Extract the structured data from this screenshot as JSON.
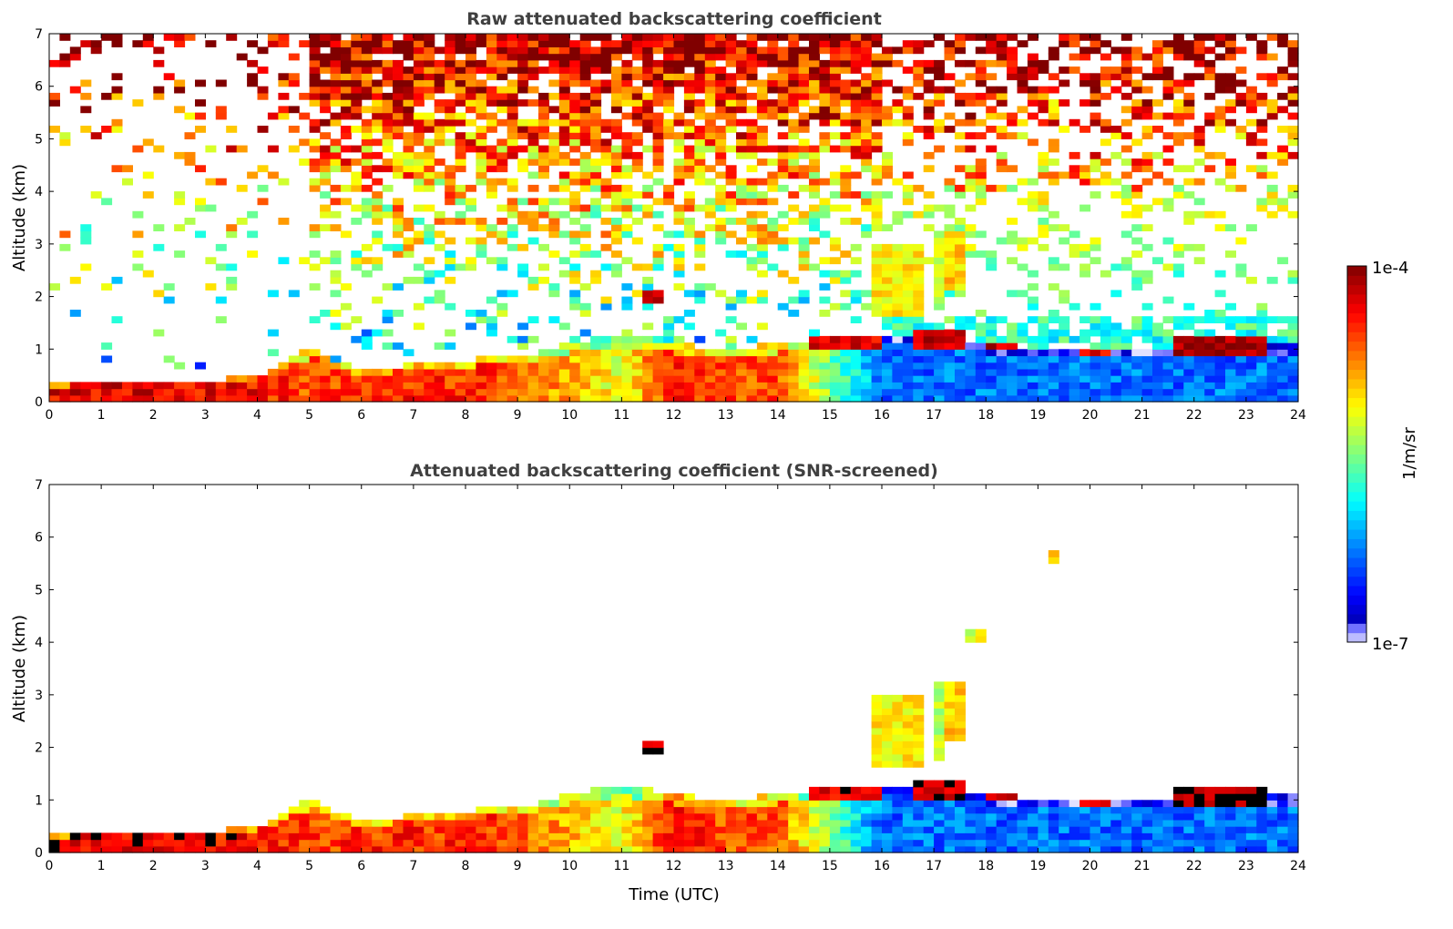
{
  "chart_data": [
    {
      "type": "heatmap",
      "title": "Raw attenuated backscattering coefficient",
      "xlabel": "",
      "ylabel": "Altitude (km)",
      "xlim": [
        0,
        24
      ],
      "ylim": [
        0,
        7
      ],
      "xticks": [
        "0",
        "1",
        "2",
        "3",
        "4",
        "5",
        "6",
        "7",
        "8",
        "9",
        "10",
        "11",
        "12",
        "13",
        "14",
        "15",
        "16",
        "17",
        "18",
        "19",
        "20",
        "21",
        "22",
        "23",
        "24"
      ],
      "yticks": [
        "0",
        "1",
        "2",
        "3",
        "4",
        "5",
        "6",
        "7"
      ],
      "screened": false
    },
    {
      "type": "heatmap",
      "title": "Attenuated backscattering coefficient (SNR-screened)",
      "xlabel": "Time (UTC)",
      "ylabel": "Altitude (km)",
      "xlim": [
        0,
        24
      ],
      "ylim": [
        0,
        7
      ],
      "xticks": [
        "0",
        "1",
        "2",
        "3",
        "4",
        "5",
        "6",
        "7",
        "8",
        "9",
        "10",
        "11",
        "12",
        "13",
        "14",
        "15",
        "16",
        "17",
        "18",
        "19",
        "20",
        "21",
        "22",
        "23",
        "24"
      ],
      "yticks": [
        "0",
        "1",
        "2",
        "3",
        "4",
        "5",
        "6",
        "7"
      ],
      "screened": true
    }
  ],
  "colorbar": {
    "label": "1/m/sr",
    "max_label": "1e-4",
    "min_label": "1e-7",
    "log10_range": [
      -7,
      -4
    ]
  },
  "model": {
    "boundary_layer_top_km_hourly": [
      0.35,
      0.4,
      0.42,
      0.4,
      0.5,
      1.0,
      0.6,
      0.7,
      0.8,
      0.85,
      1.1,
      1.3,
      1.1,
      1.0,
      1.1,
      1.2,
      1.3,
      1.2,
      1.1,
      1.0,
      1.0,
      1.0,
      1.1,
      1.1,
      1.1
    ],
    "boundary_layer_log10_hourly": [
      -4.3,
      -4.3,
      -4.3,
      -4.35,
      -4.4,
      -4.6,
      -4.5,
      -4.5,
      -4.5,
      -4.6,
      -4.9,
      -5.2,
      -4.4,
      -4.6,
      -4.6,
      -5.5,
      -6.3,
      -6.3,
      -6.3,
      -6.3,
      -6.3,
      -6.3,
      -6.3,
      -6.3,
      -6.3
    ],
    "layers": [
      {
        "t": [
          11.45,
          11.7
        ],
        "z": [
          1.9,
          2.1
        ],
        "log10": -4.2
      },
      {
        "t": [
          15.8,
          16.7
        ],
        "z": [
          1.6,
          3.0
        ],
        "log10": -5.1
      },
      {
        "t": [
          16.9,
          17.1
        ],
        "z": [
          1.7,
          3.3
        ],
        "log10": -5.3
      },
      {
        "t": [
          17.1,
          17.5
        ],
        "z": [
          2.1,
          3.3
        ],
        "log10": -5.0
      },
      {
        "t": [
          17.6,
          17.9
        ],
        "z": [
          4.0,
          4.3
        ],
        "log10": -5.2
      },
      {
        "t": [
          19.2,
          19.3
        ],
        "z": [
          5.5,
          5.7
        ],
        "log10": -5.0
      },
      {
        "t": [
          16.6,
          17.6
        ],
        "z": [
          1.0,
          1.35
        ],
        "log10": -4.2
      },
      {
        "t": [
          18.0,
          18.5
        ],
        "z": [
          0.95,
          1.15
        ],
        "log10": -4.2
      },
      {
        "t": [
          19.8,
          20.3
        ],
        "z": [
          0.9,
          1.05
        ],
        "log10": -4.3
      },
      {
        "t": [
          21.5,
          23.3
        ],
        "z": [
          0.9,
          1.2
        ],
        "log10": -4.1
      },
      {
        "t": [
          14.5,
          15.9
        ],
        "z": [
          1.0,
          1.25
        ],
        "log10": -4.3
      }
    ]
  }
}
